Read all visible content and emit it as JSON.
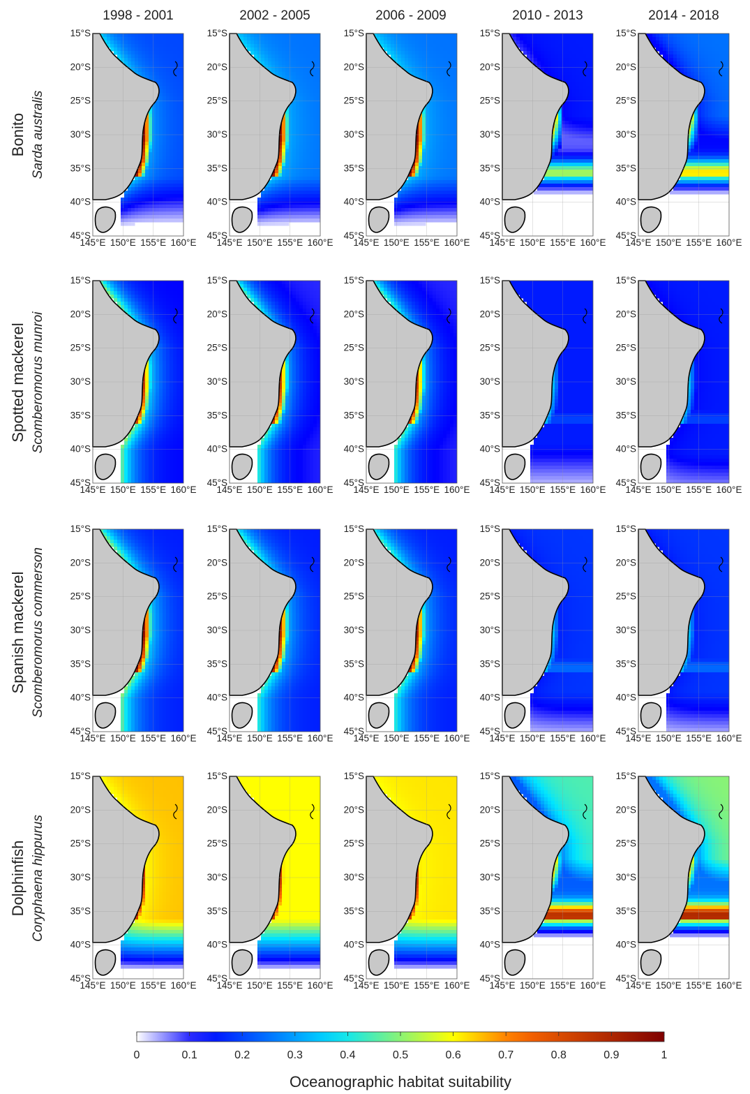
{
  "columns": [
    "1998 - 2001",
    "2002 - 2005",
    "2006 - 2009",
    "2010 - 2013",
    "2014 - 2018"
  ],
  "rows": [
    {
      "common": "Bonito",
      "scientific": "Sarda australis"
    },
    {
      "common": "Spotted mackerel",
      "scientific": "Scomberomorus munroi"
    },
    {
      "common": "Spanish mackerel",
      "scientific": "Scomberomorus commerson"
    },
    {
      "common": "Dolphinfish",
      "scientific": "Coryphaena hippurus"
    }
  ],
  "lat_ticks": [
    "15°S",
    "20°S",
    "25°S",
    "30°S",
    "35°S",
    "40°S",
    "45°S"
  ],
  "lon_ticks": [
    "145°E",
    "150°E",
    "155°E",
    "160°E"
  ],
  "colorbar": {
    "title": "Oceanographic habitat suitability",
    "ticks": [
      "0",
      "0.1",
      "0.2",
      "0.3",
      "0.4",
      "0.5",
      "0.6",
      "0.7",
      "0.8",
      "0.9",
      "1"
    ],
    "range": [
      0,
      1
    ],
    "colors": [
      "#ffffff",
      "#0000ff",
      "#00e5ff",
      "#ffff00",
      "#ff6a00",
      "#7f0000"
    ]
  },
  "colors": {
    "land": "#c8c8c8",
    "coastline": "#000000"
  },
  "suitability": [
    [
      {
        "shelf": 0.35,
        "offshore": 0.2,
        "south_cut": 0.35,
        "southern_band": 0.1,
        "peak": 0.85
      },
      {
        "shelf": 0.35,
        "offshore": 0.25,
        "south_cut": 0.35,
        "southern_band": 0.1,
        "peak": 0.85
      },
      {
        "shelf": 0.35,
        "offshore": 0.25,
        "south_cut": 0.35,
        "southern_band": 0.1,
        "peak": 0.85
      },
      {
        "shelf": 0.1,
        "offshore": 0.15,
        "south_cut": 0.05,
        "southern_band": 0.45,
        "peak": 0.75
      },
      {
        "shelf": 0.1,
        "offshore": 0.25,
        "south_cut": 0.05,
        "southern_band": 0.5,
        "peak": 0.7
      }
    ],
    [
      {
        "shelf": 0.45,
        "offshore": 0.12,
        "south_cut": 0.7,
        "southern_band": 0.0,
        "peak": 0.75
      },
      {
        "shelf": 0.4,
        "offshore": 0.1,
        "south_cut": 0.7,
        "southern_band": 0.0,
        "peak": 0.75
      },
      {
        "shelf": 0.4,
        "offshore": 0.1,
        "south_cut": 0.7,
        "southern_band": 0.0,
        "peak": 0.75
      },
      {
        "shelf": 0.15,
        "offshore": 0.15,
        "south_cut": 0.45,
        "southern_band": 0.12,
        "peak": 0.3
      },
      {
        "shelf": 0.12,
        "offshore": 0.15,
        "south_cut": 0.5,
        "southern_band": 0.12,
        "peak": 0.3
      }
    ],
    [
      {
        "shelf": 0.45,
        "offshore": 0.15,
        "south_cut": 0.7,
        "southern_band": 0.0,
        "peak": 0.85
      },
      {
        "shelf": 0.4,
        "offshore": 0.15,
        "south_cut": 0.7,
        "southern_band": 0.0,
        "peak": 0.8
      },
      {
        "shelf": 0.4,
        "offshore": 0.15,
        "south_cut": 0.7,
        "southern_band": 0.0,
        "peak": 0.8
      },
      {
        "shelf": 0.15,
        "offshore": 0.18,
        "south_cut": 0.45,
        "southern_band": 0.15,
        "peak": 0.3
      },
      {
        "shelf": 0.15,
        "offshore": 0.18,
        "south_cut": 0.45,
        "southern_band": 0.15,
        "peak": 0.3
      }
    ],
    [
      {
        "shelf": 0.6,
        "offshore": 0.65,
        "south_cut": 0.35,
        "southern_band": 0.12,
        "peak": 0.75
      },
      {
        "shelf": 0.6,
        "offshore": 0.6,
        "south_cut": 0.35,
        "southern_band": 0.12,
        "peak": 0.75
      },
      {
        "shelf": 0.6,
        "offshore": 0.62,
        "south_cut": 0.35,
        "southern_band": 0.12,
        "peak": 0.75
      },
      {
        "shelf": 0.15,
        "offshore": 0.45,
        "south_cut": 0.05,
        "southern_band": 0.65,
        "peak": 0.75
      },
      {
        "shelf": 0.15,
        "offshore": 0.5,
        "south_cut": 0.05,
        "southern_band": 0.65,
        "peak": 0.72
      }
    ]
  ]
}
